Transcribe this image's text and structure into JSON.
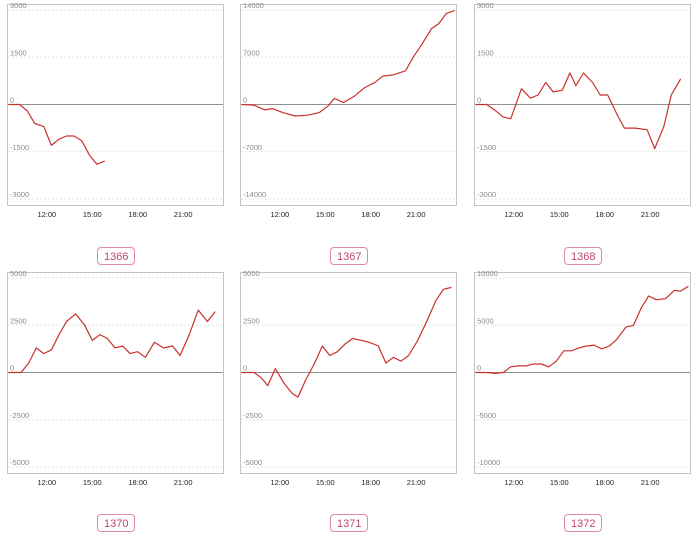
{
  "colors": {
    "line": "#c9302c"
  },
  "chart_data": [
    {
      "type": "line",
      "label": "1366",
      "yticks": [
        3000,
        1500,
        0,
        -1500,
        -3000
      ],
      "ylim": [
        -3000,
        3000
      ],
      "xticks": [
        "12:00",
        "15:00",
        "18:00",
        "21:00"
      ],
      "xlim": [
        9.5,
        23.5
      ],
      "points": [
        [
          9.5,
          0
        ],
        [
          10.2,
          0
        ],
        [
          10.7,
          -200
        ],
        [
          11.2,
          -600
        ],
        [
          11.8,
          -700
        ],
        [
          12.3,
          -1300
        ],
        [
          12.8,
          -1100
        ],
        [
          13.3,
          -1000
        ],
        [
          13.8,
          -1000
        ],
        [
          14.3,
          -1150
        ],
        [
          14.8,
          -1600
        ],
        [
          15.3,
          -1900
        ],
        [
          15.8,
          -1800
        ]
      ]
    },
    {
      "type": "line",
      "label": "1367",
      "yticks": [
        14000,
        7000,
        0,
        -7000,
        -14000
      ],
      "ylim": [
        -14000,
        14000
      ],
      "xticks": [
        "12:00",
        "15:00",
        "18:00",
        "21:00"
      ],
      "xlim": [
        9.5,
        23.5
      ],
      "points": [
        [
          9.5,
          0
        ],
        [
          10.3,
          -100
        ],
        [
          11,
          -800
        ],
        [
          11.5,
          -600
        ],
        [
          12.2,
          -1200
        ],
        [
          13,
          -1700
        ],
        [
          13.8,
          -1600
        ],
        [
          14.6,
          -1200
        ],
        [
          15.2,
          -200
        ],
        [
          15.6,
          900
        ],
        [
          16.2,
          300
        ],
        [
          16.9,
          1200
        ],
        [
          17.6,
          2500
        ],
        [
          18.3,
          3300
        ],
        [
          18.8,
          4200
        ],
        [
          19.5,
          4400
        ],
        [
          20.3,
          5000
        ],
        [
          20.8,
          7000
        ],
        [
          21.4,
          9000
        ],
        [
          22,
          11200
        ],
        [
          22.5,
          12000
        ],
        [
          23,
          13500
        ],
        [
          23.5,
          13900
        ]
      ]
    },
    {
      "type": "line",
      "label": "1368",
      "yticks": [
        3000,
        1500,
        0,
        -1500,
        -3000
      ],
      "ylim": [
        -3000,
        3000
      ],
      "xticks": [
        "12:00",
        "15:00",
        "18:00",
        "21:00"
      ],
      "xlim": [
        9.5,
        23.5
      ],
      "points": [
        [
          9.5,
          0
        ],
        [
          10.2,
          0
        ],
        [
          10.8,
          -200
        ],
        [
          11.3,
          -400
        ],
        [
          11.8,
          -450
        ],
        [
          12.5,
          500
        ],
        [
          13.1,
          200
        ],
        [
          13.6,
          300
        ],
        [
          14.1,
          700
        ],
        [
          14.6,
          400
        ],
        [
          15.2,
          450
        ],
        [
          15.7,
          1000
        ],
        [
          16.1,
          600
        ],
        [
          16.6,
          1000
        ],
        [
          17.2,
          700
        ],
        [
          17.7,
          300
        ],
        [
          18.2,
          300
        ],
        [
          18.8,
          -300
        ],
        [
          19.3,
          -750
        ],
        [
          20,
          -750
        ],
        [
          20.8,
          -800
        ],
        [
          21.3,
          -1400
        ],
        [
          21.9,
          -700
        ],
        [
          22.4,
          300
        ],
        [
          23,
          800
        ]
      ]
    },
    {
      "type": "line",
      "label": "1370",
      "yticks": [
        5000,
        2500,
        0,
        -2500,
        -5000
      ],
      "ylim": [
        -5000,
        5000
      ],
      "xticks": [
        "12:00",
        "15:00",
        "18:00",
        "21:00"
      ],
      "xlim": [
        9.5,
        23.5
      ],
      "points": [
        [
          9.5,
          0
        ],
        [
          10.3,
          0
        ],
        [
          10.8,
          500
        ],
        [
          11.3,
          1300
        ],
        [
          11.8,
          1000
        ],
        [
          12.3,
          1200
        ],
        [
          12.8,
          2000
        ],
        [
          13.3,
          2700
        ],
        [
          13.9,
          3100
        ],
        [
          14.5,
          2500
        ],
        [
          15,
          1700
        ],
        [
          15.5,
          2000
        ],
        [
          16,
          1800
        ],
        [
          16.5,
          1300
        ],
        [
          17,
          1400
        ],
        [
          17.5,
          1000
        ],
        [
          18,
          1100
        ],
        [
          18.5,
          800
        ],
        [
          19.1,
          1600
        ],
        [
          19.7,
          1300
        ],
        [
          20.3,
          1400
        ],
        [
          20.8,
          900
        ],
        [
          21.4,
          2000
        ],
        [
          22,
          3300
        ],
        [
          22.6,
          2700
        ],
        [
          23.1,
          3200
        ]
      ]
    },
    {
      "type": "line",
      "label": "1371",
      "yticks": [
        5000,
        2500,
        0,
        -2500,
        -5000
      ],
      "ylim": [
        -5000,
        5000
      ],
      "xticks": [
        "12:00",
        "15:00",
        "18:00",
        "21:00"
      ],
      "xlim": [
        9.5,
        23.5
      ],
      "points": [
        [
          9.5,
          0
        ],
        [
          10.3,
          0
        ],
        [
          10.8,
          -300
        ],
        [
          11.2,
          -700
        ],
        [
          11.7,
          200
        ],
        [
          12.3,
          -600
        ],
        [
          12.8,
          -1100
        ],
        [
          13.2,
          -1300
        ],
        [
          13.7,
          -400
        ],
        [
          14.3,
          500
        ],
        [
          14.8,
          1400
        ],
        [
          15.3,
          900
        ],
        [
          15.8,
          1100
        ],
        [
          16.3,
          1500
        ],
        [
          16.8,
          1800
        ],
        [
          17.4,
          1700
        ],
        [
          17.9,
          1600
        ],
        [
          18.5,
          1400
        ],
        [
          19,
          500
        ],
        [
          19.5,
          800
        ],
        [
          20,
          600
        ],
        [
          20.5,
          900
        ],
        [
          21.1,
          1700
        ],
        [
          21.7,
          2700
        ],
        [
          22.3,
          3800
        ],
        [
          22.8,
          4400
        ],
        [
          23.3,
          4500
        ]
      ]
    },
    {
      "type": "line",
      "label": "1372",
      "yticks": [
        10000,
        5000,
        0,
        -5000,
        -10000
      ],
      "ylim": [
        -10000,
        10000
      ],
      "xticks": [
        "12:00",
        "15:00",
        "18:00",
        "21:00"
      ],
      "xlim": [
        9.5,
        23.5
      ],
      "points": [
        [
          9.5,
          0
        ],
        [
          10.2,
          0
        ],
        [
          10.8,
          -100
        ],
        [
          11.3,
          0
        ],
        [
          11.8,
          600
        ],
        [
          12.3,
          700
        ],
        [
          12.8,
          700
        ],
        [
          13.3,
          900
        ],
        [
          13.8,
          900
        ],
        [
          14.3,
          600
        ],
        [
          14.8,
          1200
        ],
        [
          15.3,
          2300
        ],
        [
          15.8,
          2300
        ],
        [
          16.3,
          2600
        ],
        [
          16.8,
          2800
        ],
        [
          17.3,
          2900
        ],
        [
          17.8,
          2500
        ],
        [
          18.3,
          2800
        ],
        [
          18.8,
          3500
        ],
        [
          19.4,
          4800
        ],
        [
          19.9,
          5000
        ],
        [
          20.4,
          6800
        ],
        [
          20.9,
          8100
        ],
        [
          21.4,
          7700
        ],
        [
          22,
          7800
        ],
        [
          22.6,
          8700
        ],
        [
          23,
          8600
        ],
        [
          23.5,
          9100
        ]
      ]
    }
  ]
}
